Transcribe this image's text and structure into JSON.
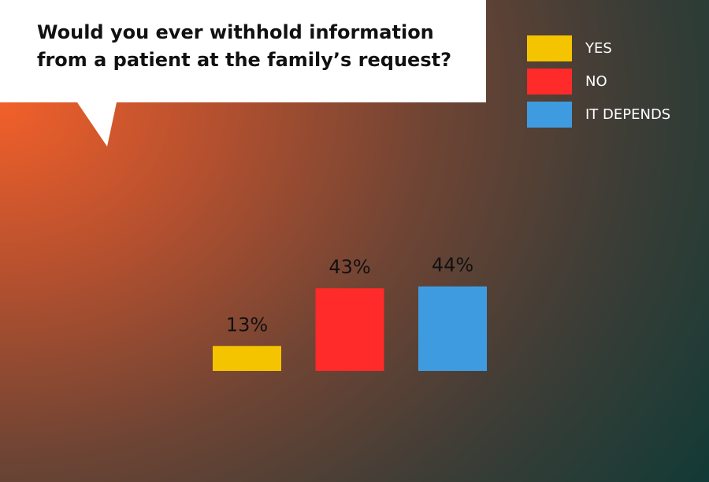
{
  "chart_data": {
    "type": "bar",
    "title": "Would you ever withhold information from a patient at the family’s request?",
    "categories": [
      "YES",
      "NO",
      "IT DEPENDS"
    ],
    "values": [
      13,
      43,
      44
    ],
    "value_labels": [
      "13%",
      "43%",
      "44%"
    ],
    "colors": [
      "#f5c400",
      "#ff2a2a",
      "#3f9be0"
    ]
  }
}
